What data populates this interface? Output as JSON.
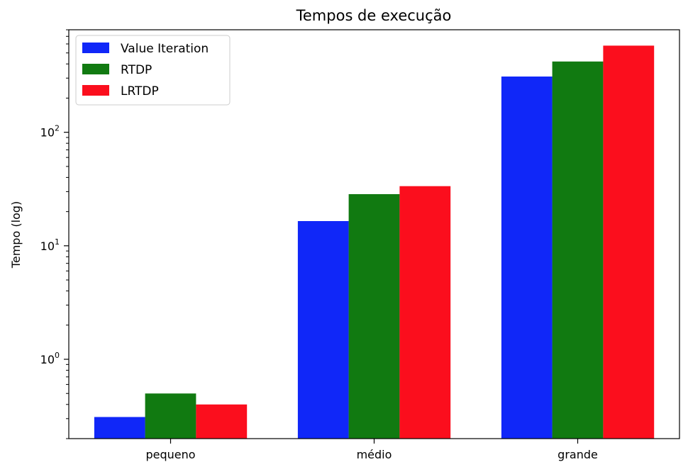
{
  "chart_data": {
    "type": "bar",
    "title": "Tempos de execução",
    "xlabel": "",
    "ylabel": "Tempo (log)",
    "yscale": "log",
    "ylim": [
      0.2,
      800
    ],
    "y_ticks": [
      {
        "value": 1,
        "base": "10",
        "exp": "0"
      },
      {
        "value": 10,
        "base": "10",
        "exp": "1"
      },
      {
        "value": 100,
        "base": "10",
        "exp": "2"
      }
    ],
    "categories": [
      "pequeno",
      "médio",
      "grande"
    ],
    "series": [
      {
        "name": "Value Iteration",
        "color": "#1027f8",
        "values": [
          0.31,
          16.5,
          310
        ]
      },
      {
        "name": "RTDP",
        "color": "#117a11",
        "values": [
          0.5,
          28.5,
          420
        ]
      },
      {
        "name": "LRTDP",
        "color": "#fb0e1d",
        "values": [
          0.4,
          33.5,
          580
        ]
      }
    ],
    "grid": false,
    "legend_position": "top-left"
  }
}
